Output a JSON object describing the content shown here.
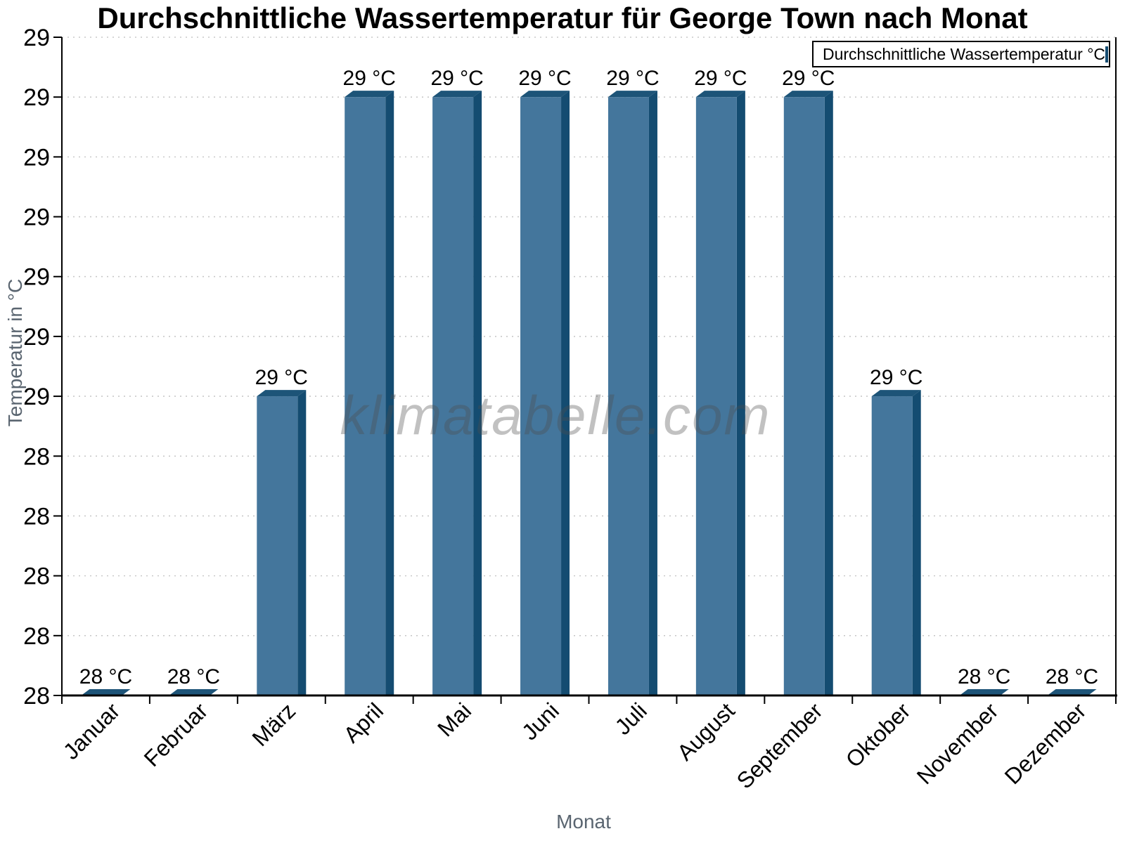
{
  "chart_data": {
    "type": "bar",
    "title": "Durchschnittliche Wassertemperatur für George Town nach Monat",
    "xlabel": "Monat",
    "ylabel": "Temperatur in °C",
    "legend_label": "Durchschnittliche Wassertemperatur °C",
    "watermark": "klimatabelle.com",
    "categories": [
      "Januar",
      "Februar",
      "März",
      "April",
      "Mai",
      "Juni",
      "Juli",
      "August",
      "September",
      "Oktober",
      "November",
      "Dezember"
    ],
    "values": [
      28.0,
      28.0,
      28.5,
      29.0,
      29.0,
      29.0,
      29.0,
      29.0,
      29.0,
      28.5,
      28.0,
      28.0
    ],
    "bar_labels": [
      "28 °C",
      "28 °C",
      "29 °C",
      "29 °C",
      "29 °C",
      "29 °C",
      "29 °C",
      "29 °C",
      "29 °C",
      "29 °C",
      "28 °C",
      "28 °C"
    ],
    "ylim": [
      28.0,
      29.1
    ],
    "ytick_labels_bottom_to_top": [
      "28",
      "28",
      "28",
      "28",
      "28",
      "29",
      "29",
      "29",
      "29",
      "29",
      "29",
      "29"
    ],
    "grid": "horizontal-dotted",
    "legend_position": "top-right",
    "colors": {
      "bar_face": "#44769C",
      "bar_side": "#144C71",
      "bar_top": "#1D5478",
      "grid_line": "#C9C9C9",
      "axis_line": "#000000",
      "axis_title_gray": "#5A6570",
      "watermark_gray": "#4D4D4D"
    }
  }
}
